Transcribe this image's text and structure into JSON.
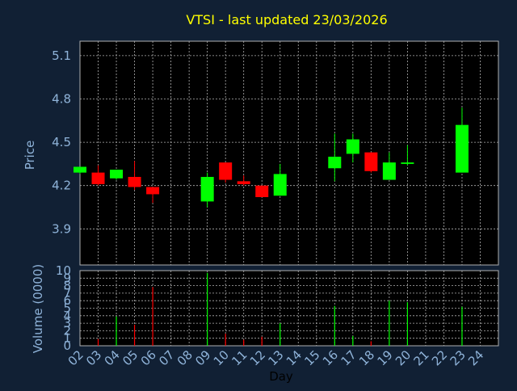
{
  "colors": {
    "background": "#112034",
    "plot_bg": "#000000",
    "axis_text": "#8fb3d9",
    "title": "#ffff00",
    "up": "#00ff00",
    "down": "#ff0000",
    "grid": "#b0b0b0",
    "x_label": "#000000"
  },
  "chart_data": [
    {
      "type": "candlestick",
      "title": "VTSI - last updated 23/03/2026",
      "ylabel": "Price",
      "ylim": [
        3.65,
        5.2
      ],
      "yticks": [
        3.9,
        4.2,
        4.5,
        4.8,
        5.1
      ],
      "grid": true,
      "candles": [
        {
          "day": "02",
          "open": 4.29,
          "high": 4.33,
          "low": 4.28,
          "close": 4.33
        },
        {
          "day": "03",
          "open": 4.29,
          "high": 4.34,
          "low": 4.2,
          "close": 4.21
        },
        {
          "day": "04",
          "open": 4.25,
          "high": 4.31,
          "low": 4.24,
          "close": 4.31
        },
        {
          "day": "05",
          "open": 4.26,
          "high": 4.37,
          "low": 4.17,
          "close": 4.19
        },
        {
          "day": "06",
          "open": 4.19,
          "high": 4.19,
          "low": 4.08,
          "close": 4.14
        },
        {
          "day": "09",
          "open": 4.09,
          "high": 4.29,
          "low": 4.05,
          "close": 4.26
        },
        {
          "day": "10",
          "open": 4.36,
          "high": 4.36,
          "low": 4.22,
          "close": 4.24
        },
        {
          "day": "11",
          "open": 4.23,
          "high": 4.27,
          "low": 4.2,
          "close": 4.21
        },
        {
          "day": "12",
          "open": 4.2,
          "high": 4.2,
          "low": 4.12,
          "close": 4.12
        },
        {
          "day": "13",
          "open": 4.13,
          "high": 4.35,
          "low": 4.13,
          "close": 4.28
        },
        {
          "day": "16",
          "open": 4.32,
          "high": 4.56,
          "low": 4.23,
          "close": 4.4
        },
        {
          "day": "17",
          "open": 4.42,
          "high": 4.56,
          "low": 4.36,
          "close": 4.52
        },
        {
          "day": "18",
          "open": 4.43,
          "high": 4.43,
          "low": 4.29,
          "close": 4.3
        },
        {
          "day": "19",
          "open": 4.24,
          "high": 4.43,
          "low": 4.24,
          "close": 4.36
        },
        {
          "day": "20",
          "open": 4.35,
          "high": 4.48,
          "low": 4.34,
          "close": 4.36
        },
        {
          "day": "23",
          "open": 4.29,
          "high": 4.74,
          "low": 4.29,
          "close": 4.62
        }
      ]
    },
    {
      "type": "bar",
      "xlabel": "Day",
      "ylabel": "Volume (0000)",
      "ylim": [
        0,
        10
      ],
      "yticks": [
        0,
        1,
        2,
        3,
        4,
        5,
        6,
        7,
        8,
        9,
        10
      ],
      "categories": [
        "02",
        "03",
        "04",
        "05",
        "06",
        "07",
        "08",
        "09",
        "10",
        "11",
        "12",
        "13",
        "14",
        "15",
        "16",
        "17",
        "18",
        "19",
        "20",
        "21",
        "22",
        "23",
        "24"
      ],
      "bars": [
        {
          "day": "03",
          "value": 0.9,
          "direction": "down"
        },
        {
          "day": "04",
          "value": 3.9,
          "direction": "up"
        },
        {
          "day": "05",
          "value": 2.8,
          "direction": "down"
        },
        {
          "day": "06",
          "value": 7.8,
          "direction": "down"
        },
        {
          "day": "09",
          "value": 9.7,
          "direction": "up"
        },
        {
          "day": "10",
          "value": 1.6,
          "direction": "down"
        },
        {
          "day": "11",
          "value": 0.8,
          "direction": "down"
        },
        {
          "day": "12",
          "value": 1.2,
          "direction": "down"
        },
        {
          "day": "13",
          "value": 3.0,
          "direction": "up"
        },
        {
          "day": "16",
          "value": 5.3,
          "direction": "up"
        },
        {
          "day": "17",
          "value": 1.3,
          "direction": "up"
        },
        {
          "day": "18",
          "value": 0.6,
          "direction": "down"
        },
        {
          "day": "19",
          "value": 6.0,
          "direction": "up"
        },
        {
          "day": "20",
          "value": 5.8,
          "direction": "up"
        },
        {
          "day": "23",
          "value": 5.2,
          "direction": "up"
        }
      ]
    }
  ]
}
